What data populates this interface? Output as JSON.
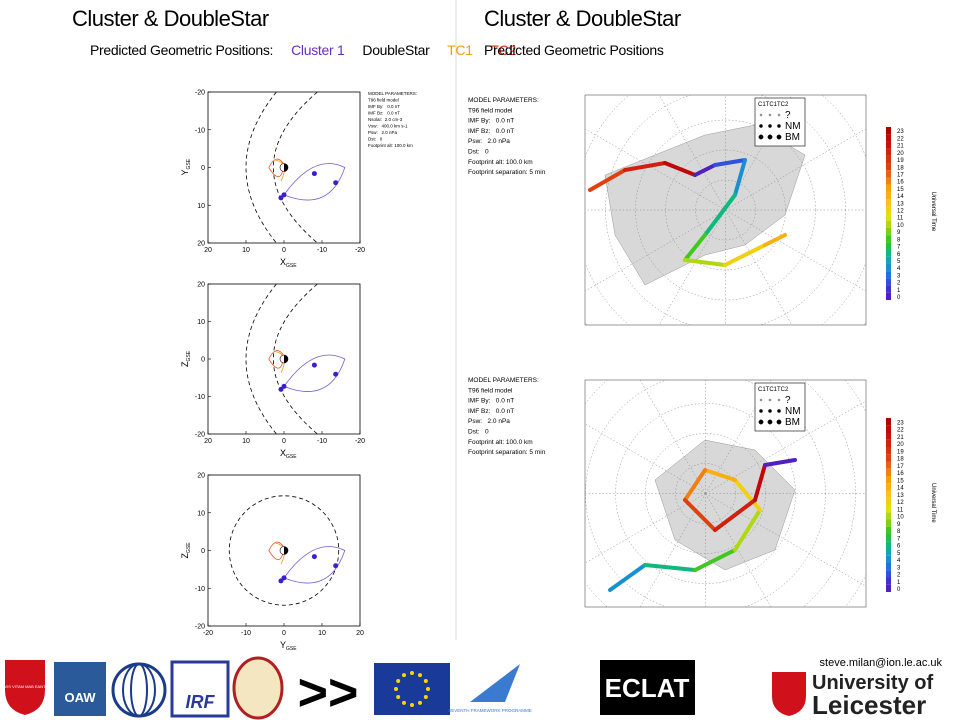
{
  "left": {
    "title": "Cluster & DoubleStar",
    "subtitle_prefix": "Predicted Geometric Positions:",
    "subtitle_items": [
      "Cluster 1",
      "DoubleStar",
      "TC1",
      "TC2"
    ],
    "model_parameters": [
      "MODEL PARAMETERS:",
      "T96 field model",
      "IMF By:   0.0 nT",
      "IMF Bz:   0.0 nT",
      "Nsolar:  2.0 cm-3",
      "Vsw:   400.0 km s-1",
      "Psw:   2.0 nPa",
      "Dst:   0",
      "Footprint alt: 100.0 km"
    ],
    "plots": [
      {
        "y_label": "Y",
        "y_sub": "GSE",
        "x_label": "X",
        "x_sub": "GSE",
        "xlim": [
          20,
          -20
        ],
        "ylim": [
          20,
          -20
        ],
        "xticks": [
          20,
          10,
          0,
          -10,
          -20
        ],
        "yticks": [
          -20,
          -10,
          0,
          10,
          20
        ]
      },
      {
        "y_label": "Z",
        "y_sub": "GSE",
        "x_label": "X",
        "x_sub": "GSE",
        "xlim": [
          20,
          -20
        ],
        "ylim": [
          -20,
          20
        ],
        "xticks": [
          20,
          10,
          0,
          -10,
          -20
        ],
        "yticks": [
          20,
          10,
          0,
          -10,
          -20
        ]
      },
      {
        "y_label": "Z",
        "y_sub": "GSE",
        "x_label": "Y",
        "x_sub": "GSE",
        "xlim": [
          -20,
          20
        ],
        "ylim": [
          -20,
          20
        ],
        "xticks": [
          -20,
          -10,
          0,
          10,
          20
        ],
        "yticks": [
          20,
          10,
          0,
          -10,
          -20
        ]
      }
    ]
  },
  "right": {
    "title": "Cluster & DoubleStar",
    "subtitle": "Predicted Geometric Positions",
    "maps": [
      {
        "model_parameters": [
          "MODEL PARAMETERS:",
          "T96 field model",
          "IMF By:   0.0 nT",
          "IMF Bz:   0.0 nT",
          "Psw:   2.0 nPa",
          "Dst:   0",
          "Footprint alt: 100.0 km",
          "Footprint separation: 5 min"
        ],
        "legend_title": "C1TC1TC2",
        "legend_rows": [
          "?",
          "NM",
          "BM"
        ],
        "colorbar_label": "Universal Time",
        "colorbar_ticks": [
          0,
          1,
          2,
          3,
          4,
          5,
          6,
          7,
          8,
          9,
          10,
          11,
          12,
          13,
          14,
          15,
          16,
          17,
          18,
          19,
          20,
          21,
          22,
          23
        ]
      },
      {
        "model_parameters": [
          "MODEL PARAMETERS:",
          "T96 field model",
          "IMF By:   0.0 nT",
          "IMF Bz:   0.0 nT",
          "Psw:   2.0 nPa",
          "Dst:   0",
          "Footprint alt: 100.0 km",
          "Footprint separation: 5 min"
        ],
        "legend_title": "C1TC1TC2",
        "legend_rows": [
          "?",
          "NM",
          "BM"
        ],
        "colorbar_label": "Universal Time",
        "colorbar_ticks": [
          0,
          1,
          2,
          3,
          4,
          5,
          6,
          7,
          8,
          9,
          10,
          11,
          12,
          13,
          14,
          15,
          16,
          17,
          18,
          19,
          20,
          21,
          22,
          23
        ]
      }
    ]
  },
  "footer": {
    "email": "steve.milan@ion.le.ac.uk",
    "logos": [
      "VIS VITAM MAB EANT",
      "OAW",
      "IRF",
      ">>",
      "SEVENTH FRAMEWORK PROGRAMME",
      "ECLAT",
      "University of",
      "Leicester"
    ]
  }
}
